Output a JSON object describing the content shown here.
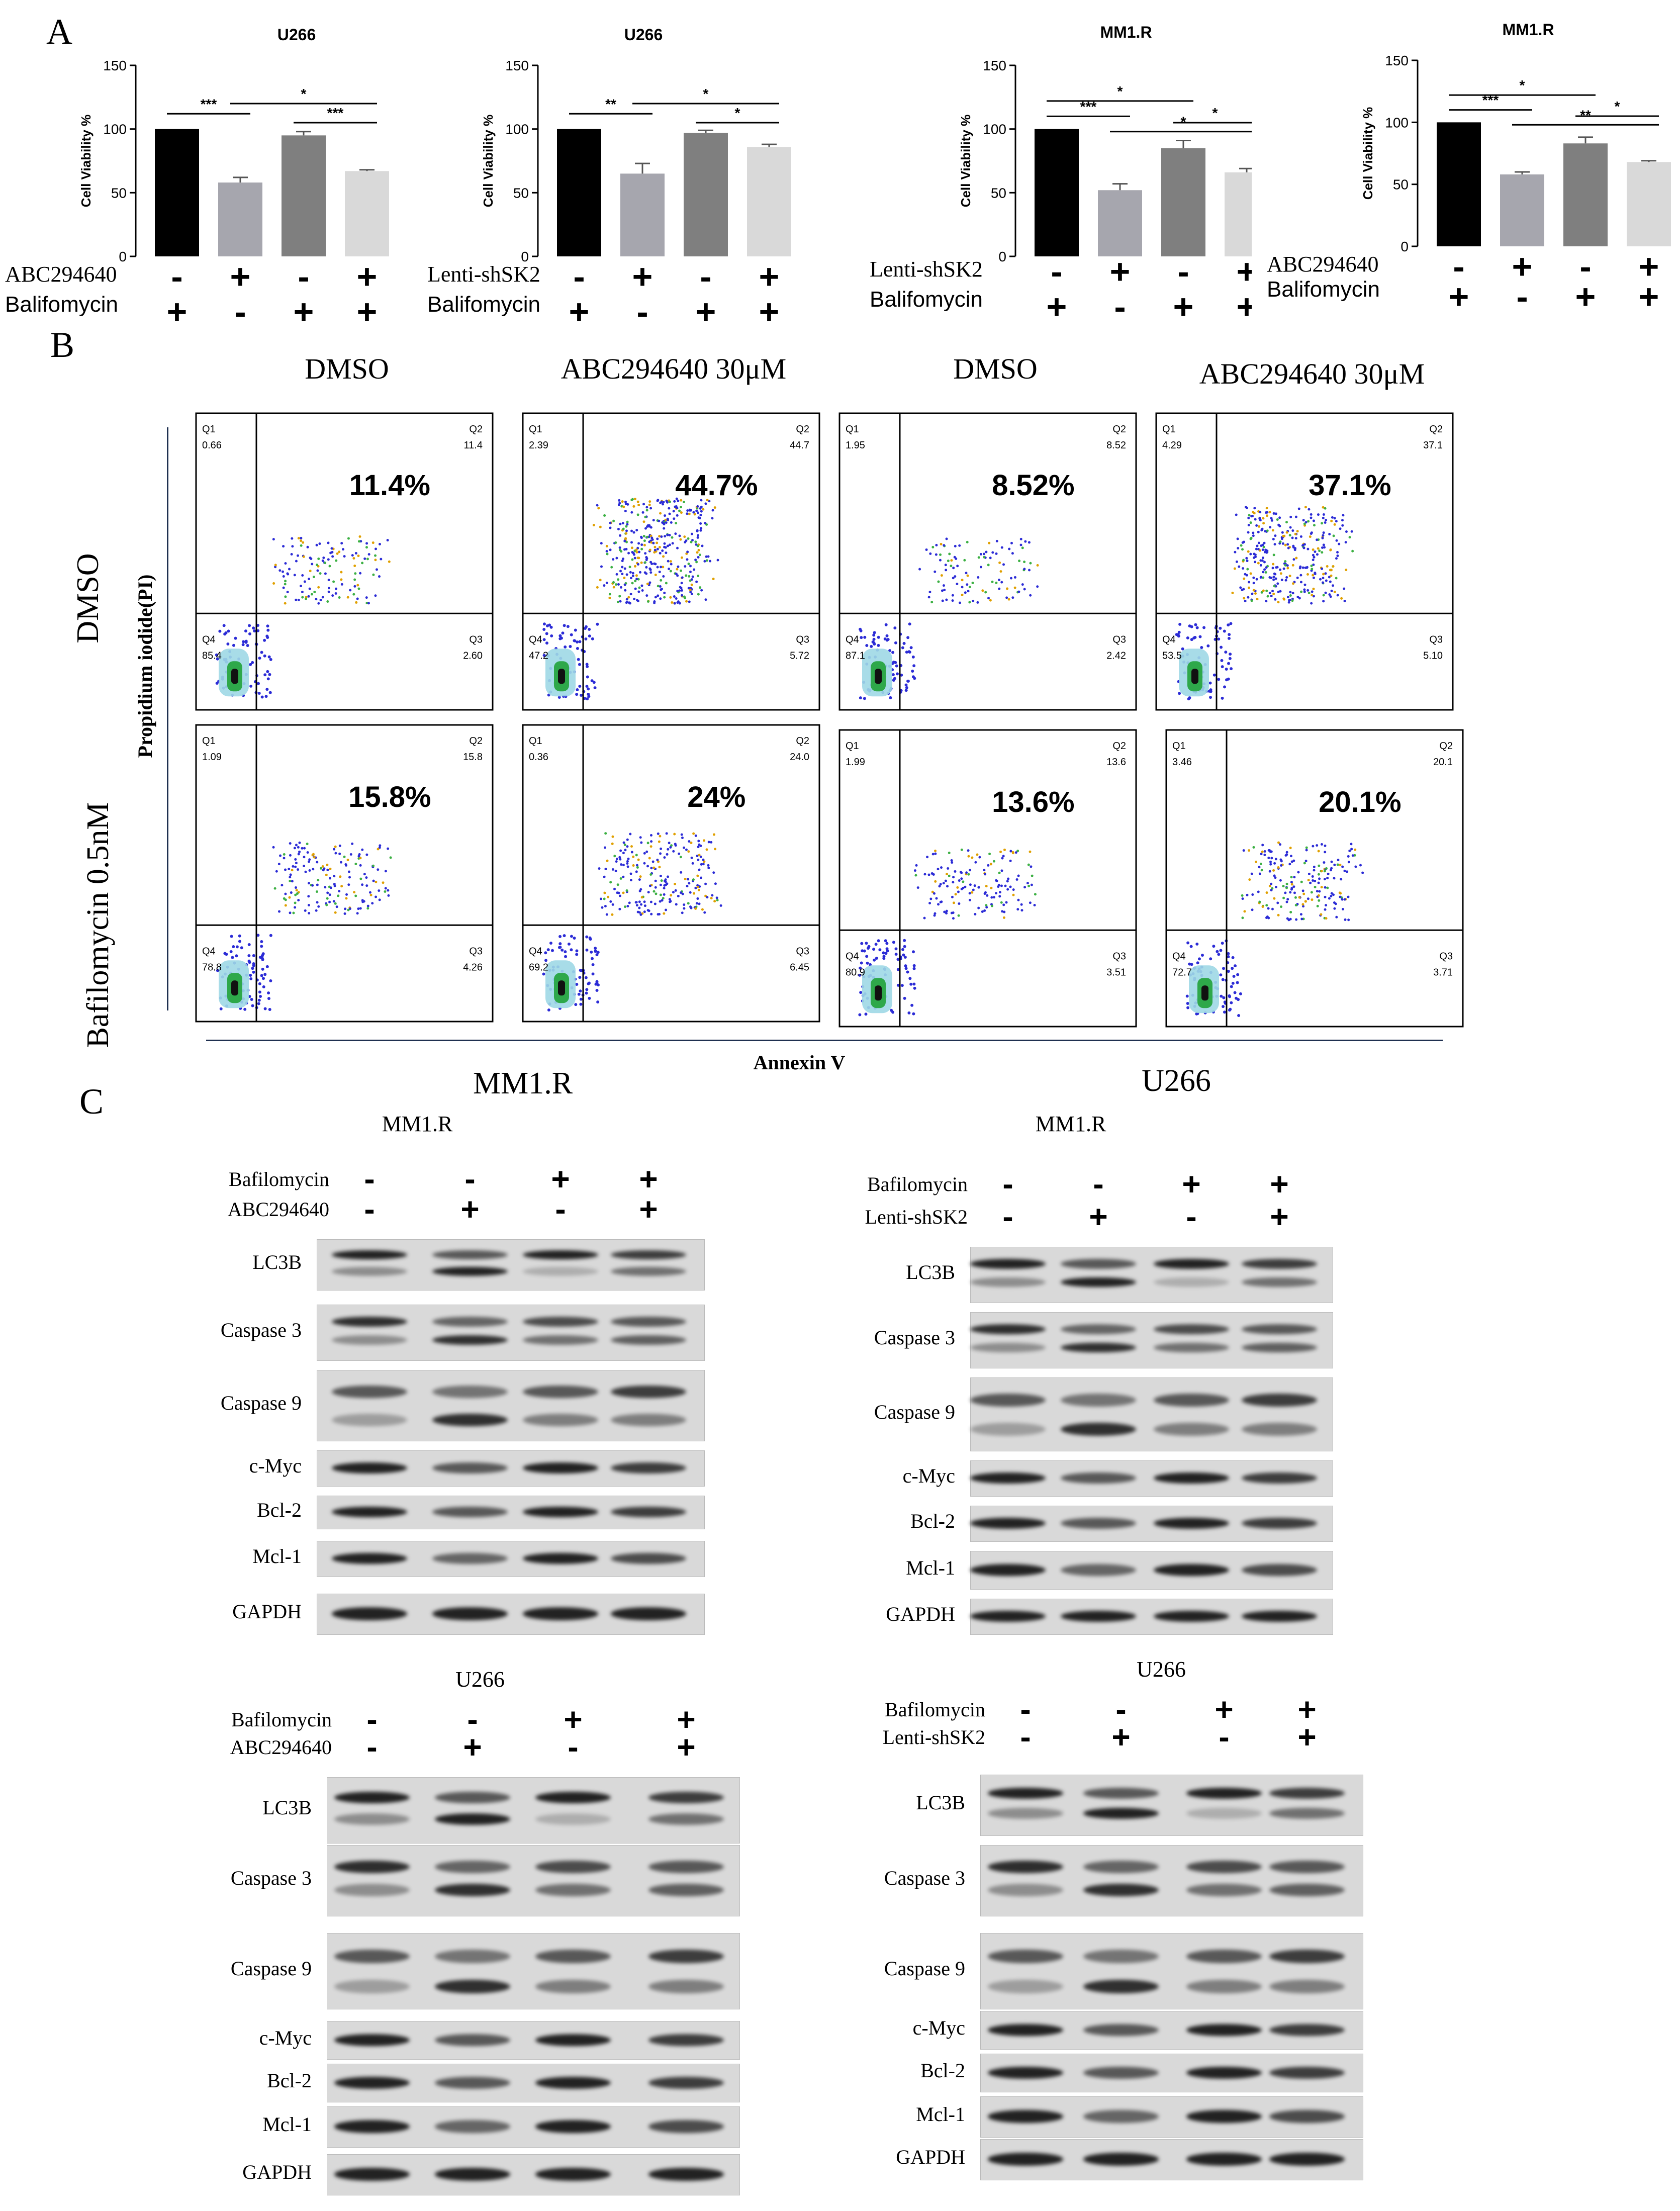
{
  "panels": {
    "a": "A",
    "b": "B",
    "c": "C"
  },
  "panelA": {
    "charts": [
      {
        "title": "U266",
        "ylabel": "Cell Viability %",
        "yticks": [
          "0",
          "50",
          "100",
          "150"
        ],
        "row1_label": "ABC294640",
        "row2_label": "Balifomycin",
        "row1": [
          "-",
          "+",
          "-",
          "+"
        ],
        "row2": [
          "+",
          "-",
          "+",
          "+"
        ],
        "sig": [
          {
            "from": 0,
            "to": 1,
            "text": "***"
          },
          {
            "from": 1,
            "to": 3,
            "text": "*"
          },
          {
            "from": 2,
            "to": 3,
            "text": "***"
          }
        ]
      },
      {
        "title": "U266",
        "ylabel": "Cell Viability %",
        "yticks": [
          "0",
          "50",
          "100",
          "150"
        ],
        "row1_label": "Lenti-shSK2",
        "row2_label": "Balifomycin",
        "row1": [
          "-",
          "+",
          "-",
          "+"
        ],
        "row2": [
          "+",
          "-",
          "+",
          "+"
        ],
        "sig": [
          {
            "from": 0,
            "to": 1,
            "text": "**"
          },
          {
            "from": 1,
            "to": 3,
            "text": "*"
          },
          {
            "from": 2,
            "to": 3,
            "text": "*"
          }
        ]
      },
      {
        "title": "MM1.R",
        "ylabel": "Cell Viability %",
        "yticks": [
          "0",
          "50",
          "100",
          "150"
        ],
        "row1_label": "Lenti-shSK2",
        "row2_label": "Balifomycin",
        "row1": [
          "-",
          "+",
          "-",
          "+"
        ],
        "row2": [
          "+",
          "-",
          "+",
          "+"
        ],
        "sig": [
          {
            "from": 0,
            "to": 2,
            "text": "*"
          },
          {
            "from": 0,
            "to": 1,
            "text": "***"
          },
          {
            "from": 2,
            "to": 3,
            "text": "*"
          },
          {
            "from": 1,
            "to": 3,
            "text": "*"
          }
        ]
      },
      {
        "title": "MM1.R",
        "ylabel": "Cell Viability %",
        "yticks": [
          "0",
          "50",
          "100",
          "150"
        ],
        "row1_label": "ABC294640",
        "row2_label": "Balifomycin",
        "row1": [
          "-",
          "+",
          "-",
          "+"
        ],
        "row2": [
          "+",
          "-",
          "+",
          "+"
        ],
        "sig": [
          {
            "from": 0,
            "to": 2,
            "text": "*"
          },
          {
            "from": 0,
            "to": 1,
            "text": "***"
          },
          {
            "from": 2,
            "to": 3,
            "text": "*"
          },
          {
            "from": 1,
            "to": 3,
            "text": "**"
          }
        ]
      }
    ]
  },
  "chart_data": [
    {
      "type": "bar",
      "title": "U266",
      "ylabel": "Cell Viability %",
      "ylim": [
        0,
        150
      ],
      "values": [
        100,
        58,
        95,
        67
      ],
      "errors": [
        0,
        4,
        3,
        1
      ],
      "colors": [
        "#000000",
        "#a6a6ae",
        "#7f7f7f",
        "#d9d9d9"
      ]
    },
    {
      "type": "bar",
      "title": "U266",
      "ylabel": "Cell Viability %",
      "ylim": [
        0,
        150
      ],
      "values": [
        100,
        65,
        97,
        86
      ],
      "errors": [
        0,
        8,
        2,
        2
      ],
      "colors": [
        "#000000",
        "#a6a6ae",
        "#7f7f7f",
        "#d9d9d9"
      ]
    },
    {
      "type": "bar",
      "title": "MM1.R",
      "ylabel": "Cell Viability %",
      "ylim": [
        0,
        150
      ],
      "values": [
        100,
        52,
        85,
        66
      ],
      "errors": [
        0,
        5,
        6,
        3
      ],
      "colors": [
        "#000000",
        "#a6a6ae",
        "#7f7f7f",
        "#d9d9d9"
      ]
    },
    {
      "type": "bar",
      "title": "MM1.R",
      "ylabel": "Cell Viability %",
      "ylim": [
        0,
        150
      ],
      "values": [
        100,
        58,
        83,
        68
      ],
      "errors": [
        0,
        2,
        5,
        1
      ],
      "colors": [
        "#000000",
        "#a6a6ae",
        "#7f7f7f",
        "#d9d9d9"
      ]
    }
  ],
  "panelB": {
    "col_headers": [
      "DMSO",
      "ABC294640 30μM",
      "DMSO",
      "ABC294640 30μM"
    ],
    "row_headers": [
      "DMSO",
      "Bafilomycin 0.5nM"
    ],
    "ylabel": "Propidium iodide(PI)",
    "xlabel": "Annexin V",
    "cell_labels": {
      "left": "MM1.R",
      "right": "U266"
    },
    "plots": [
      {
        "q1": "0.66",
        "q2": "11.4",
        "q3": "2.60",
        "q4": "85.4",
        "big": "11.4%"
      },
      {
        "q1": "2.39",
        "q2": "44.7",
        "q3": "5.72",
        "q4": "47.2",
        "big": "44.7%"
      },
      {
        "q1": "1.95",
        "q2": "8.52",
        "q3": "2.42",
        "q4": "87.1",
        "big": "8.52%"
      },
      {
        "q1": "4.29",
        "q2": "37.1",
        "q3": "5.10",
        "q4": "53.5",
        "big": "37.1%"
      },
      {
        "q1": "1.09",
        "q2": "15.8",
        "q3": "4.26",
        "q4": "78.8",
        "big": "15.8%"
      },
      {
        "q1": "0.36",
        "q2": "24.0",
        "q3": "6.45",
        "q4": "69.2",
        "big": "24%"
      },
      {
        "q1": "1.99",
        "q2": "13.6",
        "q3": "3.51",
        "q4": "80.9",
        "big": "13.6%"
      },
      {
        "q1": "3.46",
        "q2": "20.1",
        "q3": "3.71",
        "q4": "72.7",
        "big": "20.1%"
      }
    ],
    "qnames": {
      "q1": "Q1",
      "q2": "Q2",
      "q3": "Q3",
      "q4": "Q4"
    }
  },
  "panelC": {
    "blots": [
      {
        "title": "MM1.R",
        "cond1": "Bafilomycin",
        "cond2": "ABC294640",
        "row1": [
          "-",
          "-",
          "+",
          "+"
        ],
        "row2": [
          "-",
          "+",
          "-",
          "+"
        ],
        "proteins": [
          "LC3B",
          "Caspase 3",
          "Caspase 9",
          "c-Myc",
          "Bcl-2",
          "Mcl-1",
          "GAPDH"
        ]
      },
      {
        "title": "MM1.R",
        "cond1": "Bafilomycin",
        "cond2": "Lenti-shSK2",
        "row1": [
          "-",
          "-",
          "+",
          "+"
        ],
        "row2": [
          "-",
          "+",
          "-",
          "+"
        ],
        "proteins": [
          "LC3B",
          "Caspase 3",
          "Caspase 9",
          "c-Myc",
          "Bcl-2",
          "Mcl-1",
          "GAPDH"
        ]
      },
      {
        "title": "U266",
        "cond1": "Bafilomycin",
        "cond2": "ABC294640",
        "row1": [
          "-",
          "-",
          "+",
          "+"
        ],
        "row2": [
          "-",
          "+",
          "-",
          "+"
        ],
        "proteins": [
          "LC3B",
          "Caspase 3",
          "Caspase 9",
          "c-Myc",
          "Bcl-2",
          "Mcl-1",
          "GAPDH"
        ]
      },
      {
        "title": "U266",
        "cond1": "Bafilomycin",
        "cond2": "Lenti-shSK2",
        "row1": [
          "-",
          "-",
          "+",
          "+"
        ],
        "row2": [
          "-",
          "+",
          "-",
          "+"
        ],
        "proteins": [
          "LC3B",
          "Caspase 3",
          "Caspase 9",
          "c-Myc",
          "Bcl-2",
          "Mcl-1",
          "GAPDH"
        ]
      }
    ]
  }
}
